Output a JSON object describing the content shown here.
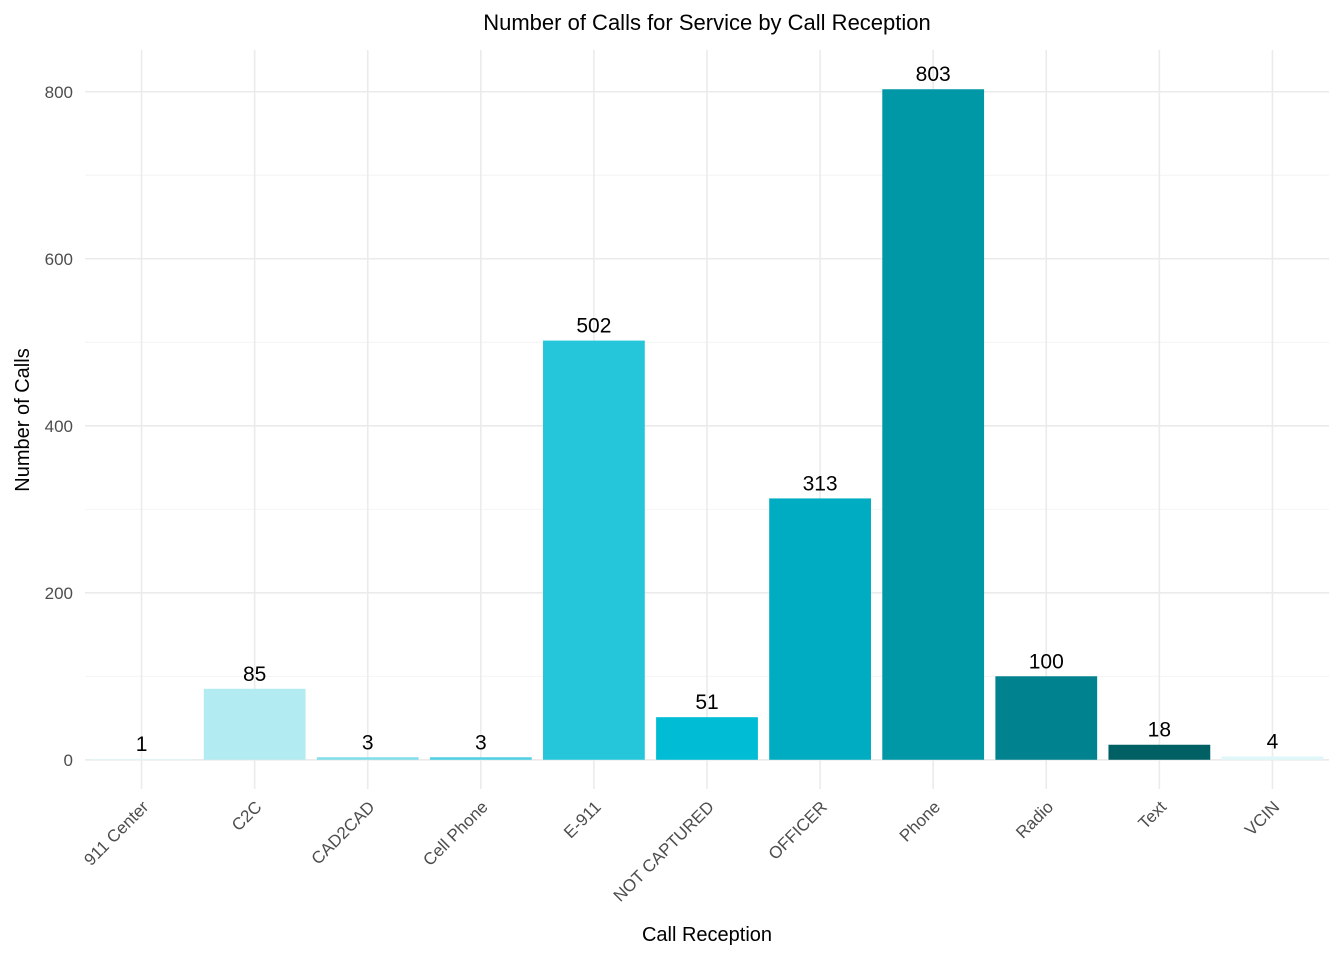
{
  "chart_data": {
    "type": "bar",
    "title": "Number of Calls for Service by Call Reception",
    "xlabel": "Call Reception",
    "ylabel": "Number of Calls",
    "categories": [
      "911 Center",
      "C2C",
      "CAD2CAD",
      "Cell Phone",
      "E-911",
      "NOT CAPTURED",
      "OFFICER",
      "Phone",
      "Radio",
      "Text",
      "VCIN"
    ],
    "values": [
      1,
      85,
      3,
      3,
      502,
      51,
      313,
      803,
      100,
      18,
      4
    ],
    "colors": [
      "#e0f7fa",
      "#b2ebf2",
      "#80deea",
      "#4dd0e1",
      "#26c6da",
      "#00bcd4",
      "#00acc1",
      "#0097a7",
      "#00838f",
      "#006064",
      "#e0f7fa"
    ],
    "ylim": [
      -35,
      850
    ],
    "yticks": [
      0,
      200,
      400,
      600,
      800
    ],
    "grid": true,
    "legend": "none"
  }
}
